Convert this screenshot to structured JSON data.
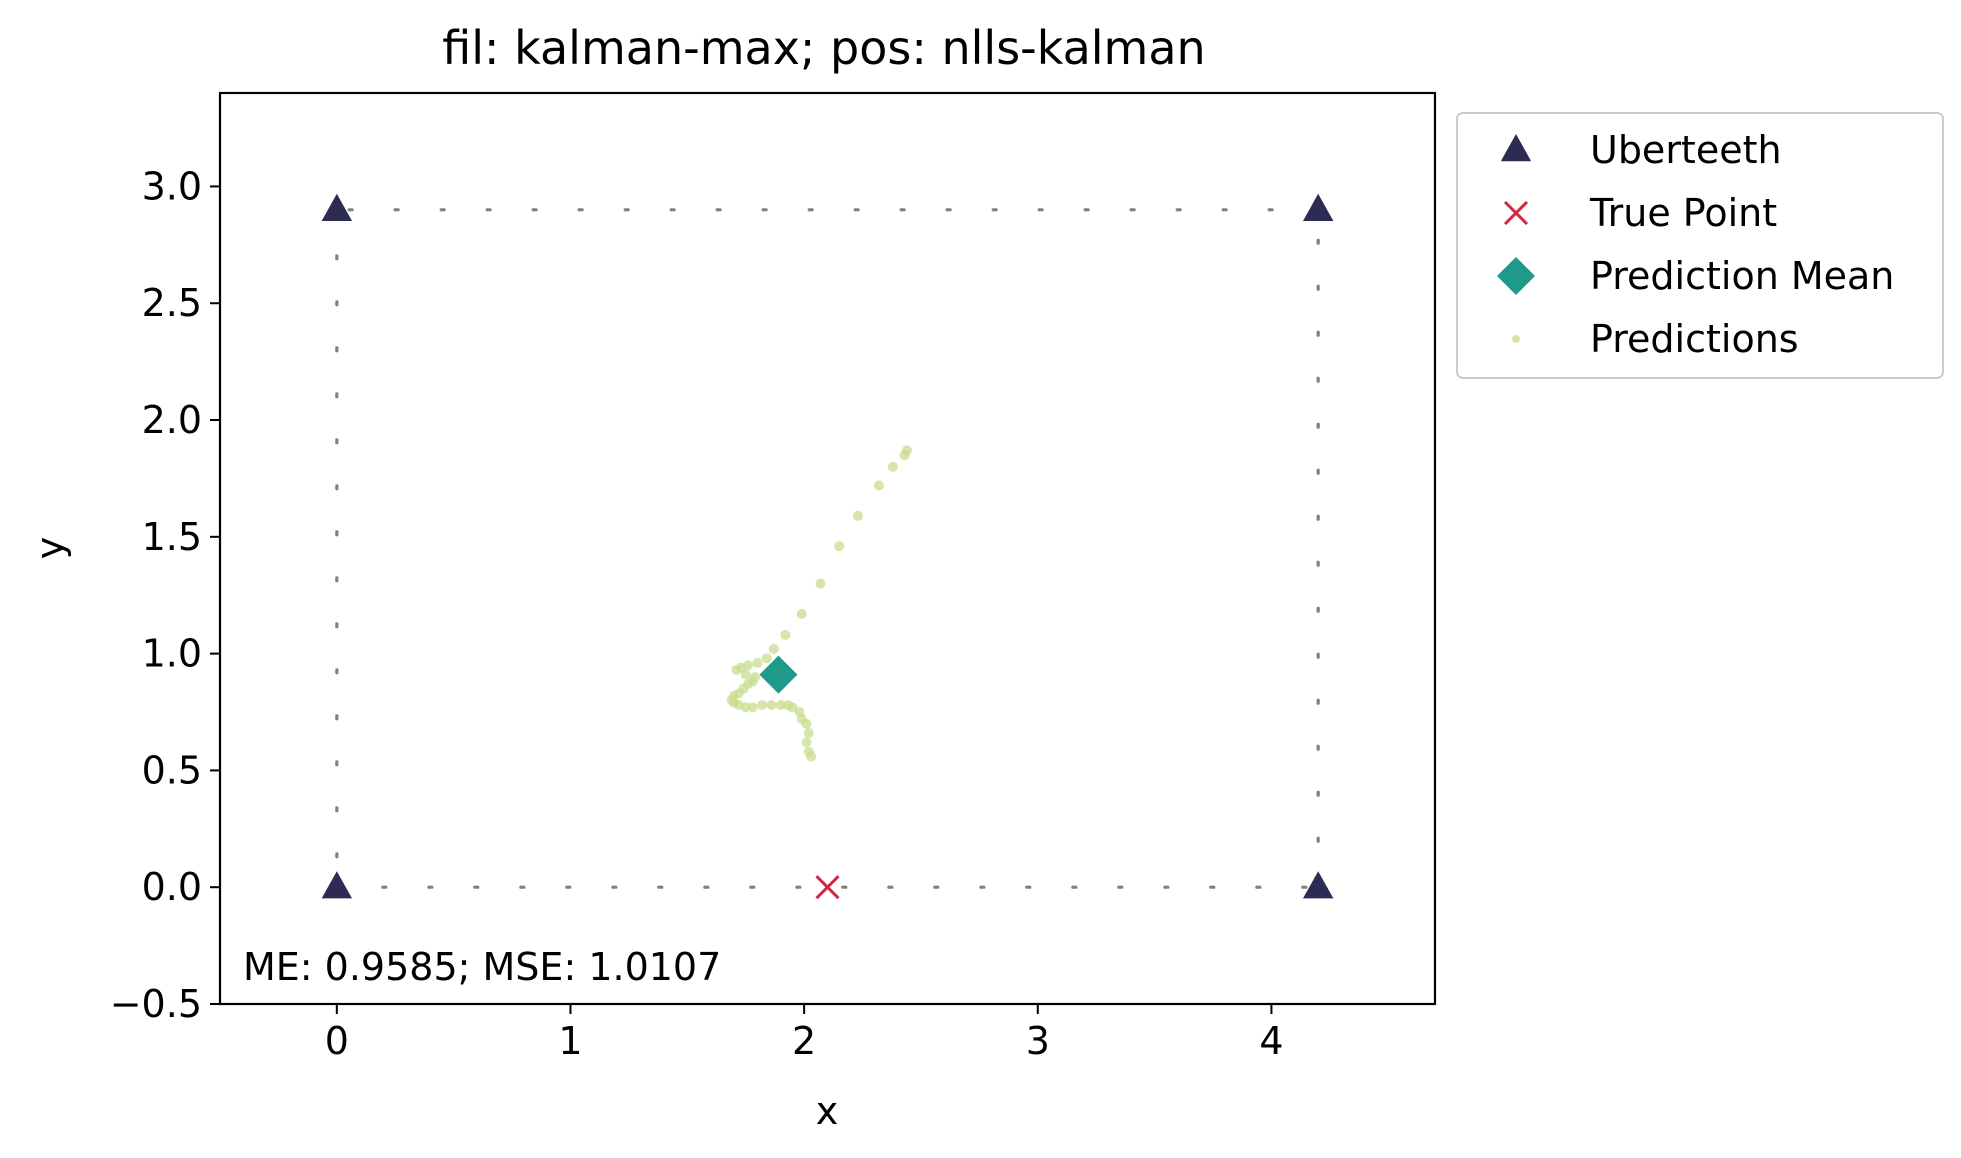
{
  "chart_data": {
    "type": "scatter",
    "title": "fil: kalman-max; pos: nlls-kalman",
    "xlabel": "x",
    "ylabel": "y",
    "xlim": [
      -0.5,
      4.7
    ],
    "ylim": [
      -0.5,
      3.4
    ],
    "xticks": [
      0,
      1,
      2,
      3,
      4
    ],
    "xtick_labels": [
      "0",
      "1",
      "2",
      "3",
      "4"
    ],
    "yticks": [
      -0.5,
      0.0,
      0.5,
      1.0,
      1.5,
      2.0,
      2.5,
      3.0
    ],
    "ytick_labels": [
      "−0.5",
      "0.0",
      "0.5",
      "1.0",
      "1.5",
      "2.0",
      "2.5",
      "3.0"
    ],
    "grid": false,
    "legend_location": "outside upper right",
    "annotation": "ME: 0.9585;  MSE: 1.0107",
    "room_outline": {
      "x": [
        0,
        4.2,
        4.2,
        0,
        0
      ],
      "y": [
        0,
        0,
        2.9,
        2.9,
        0
      ],
      "color": "#808080"
    },
    "series": [
      {
        "name": "Uberteeth",
        "marker": "triangle",
        "color": "#2d2a54",
        "points": [
          [
            0,
            2.9
          ],
          [
            4.2,
            2.9
          ],
          [
            0,
            0
          ],
          [
            4.2,
            0
          ]
        ]
      },
      {
        "name": "True Point",
        "marker": "x",
        "color": "#d6263f",
        "points": [
          [
            2.1,
            0.0
          ]
        ]
      },
      {
        "name": "Prediction Mean",
        "marker": "diamond",
        "color": "#1f9a8a",
        "points": [
          [
            1.89,
            0.91
          ]
        ]
      },
      {
        "name": "Predictions",
        "marker": "dot",
        "color": "#c8dc8c",
        "points": [
          [
            2.44,
            1.87
          ],
          [
            2.43,
            1.85
          ],
          [
            2.38,
            1.8
          ],
          [
            2.32,
            1.72
          ],
          [
            2.23,
            1.59
          ],
          [
            2.15,
            1.46
          ],
          [
            2.07,
            1.3
          ],
          [
            1.99,
            1.17
          ],
          [
            1.92,
            1.08
          ],
          [
            1.87,
            1.02
          ],
          [
            1.84,
            0.98
          ],
          [
            1.8,
            0.96
          ],
          [
            1.76,
            0.95
          ],
          [
            1.73,
            0.94
          ],
          [
            1.71,
            0.93
          ],
          [
            1.75,
            0.91
          ],
          [
            1.79,
            0.9
          ],
          [
            1.78,
            0.88
          ],
          [
            1.76,
            0.87
          ],
          [
            1.74,
            0.85
          ],
          [
            1.72,
            0.83
          ],
          [
            1.7,
            0.82
          ],
          [
            1.69,
            0.8
          ],
          [
            1.7,
            0.79
          ],
          [
            1.72,
            0.78
          ],
          [
            1.75,
            0.77
          ],
          [
            1.78,
            0.77
          ],
          [
            1.82,
            0.78
          ],
          [
            1.86,
            0.78
          ],
          [
            1.9,
            0.78
          ],
          [
            1.93,
            0.78
          ],
          [
            1.95,
            0.77
          ],
          [
            1.98,
            0.75
          ],
          [
            1.99,
            0.72
          ],
          [
            2.01,
            0.7
          ],
          [
            2.02,
            0.66
          ],
          [
            2.01,
            0.62
          ],
          [
            2.02,
            0.58
          ],
          [
            2.03,
            0.56
          ]
        ]
      }
    ]
  }
}
